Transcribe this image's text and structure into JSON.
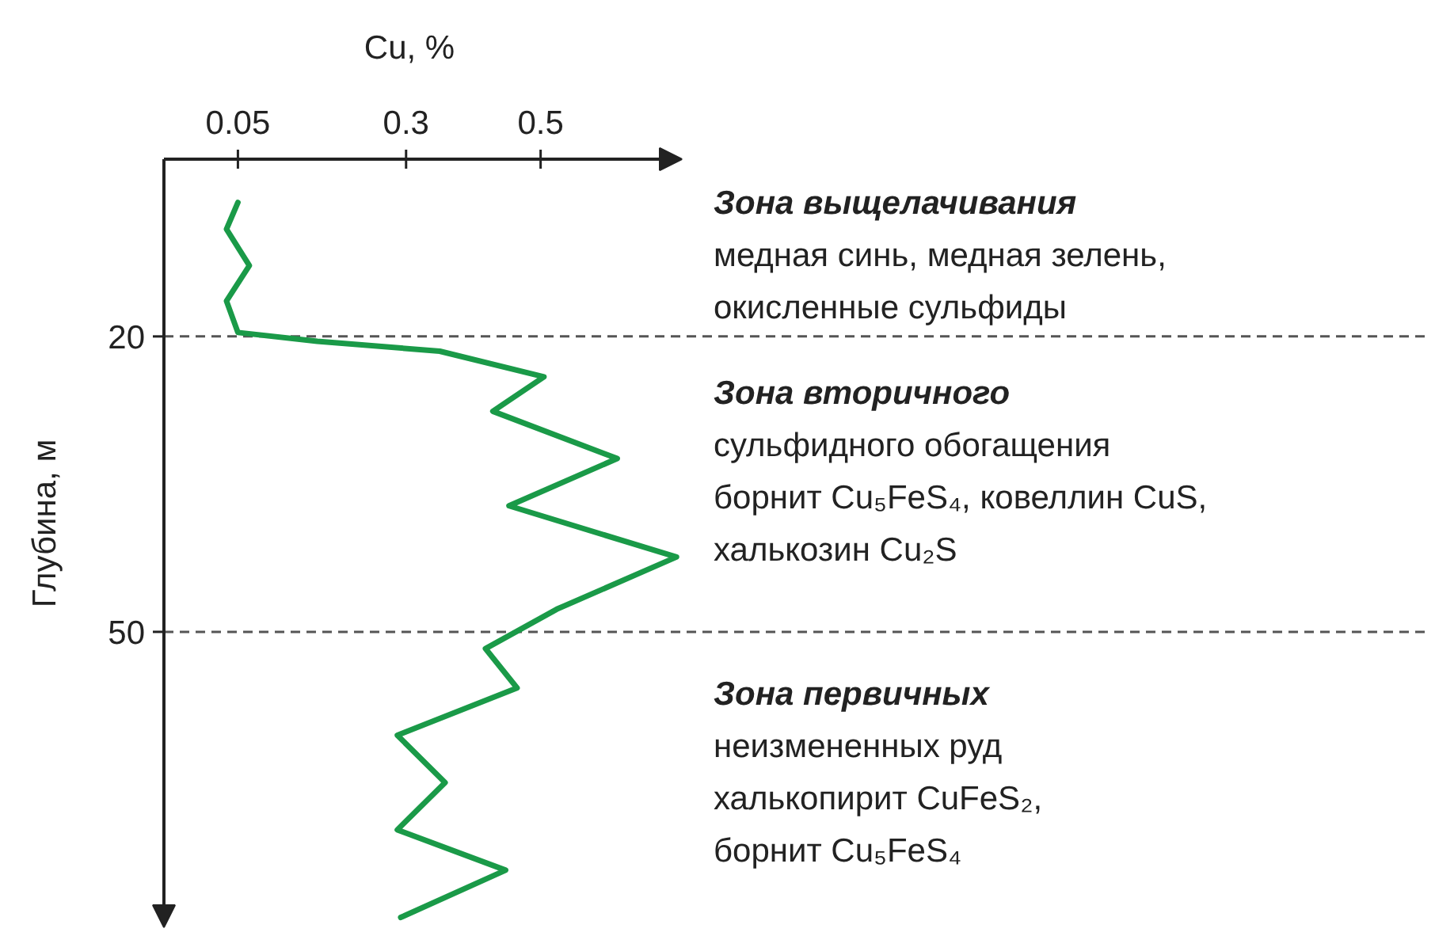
{
  "chart_data": {
    "type": "line",
    "xlabel": "Cu, %",
    "ylabel": "Глубина, м",
    "xlim": [
      -0.06,
      0.71
    ],
    "ylim": [
      80,
      2
    ],
    "xticks": [
      0.05,
      0.3,
      0.5
    ],
    "yticks": [
      20,
      50
    ],
    "grid": false,
    "series": [
      {
        "color": "#1a9a48",
        "x": [
          0.05,
          0.033,
          0.067,
          0.033,
          0.05,
          0.168,
          0.35,
          0.505,
          0.429,
          0.614,
          0.453,
          0.702,
          0.524,
          0.418,
          0.465,
          0.287,
          0.358,
          0.287,
          0.448,
          0.292
        ],
        "values": [
          6.4,
          9.1,
          12.8,
          16.4,
          19.6,
          20.5,
          21.5,
          24.1,
          27.6,
          32.4,
          37.2,
          42.4,
          47.7,
          51.7,
          55.7,
          60.5,
          65.3,
          70.1,
          74.2,
          79.0
        ]
      }
    ],
    "ref_lines": [
      {
        "axis": "y",
        "value": 20,
        "line_style": "dashed",
        "color": "#555555"
      },
      {
        "axis": "y",
        "value": 50,
        "line_style": "dashed",
        "color": "#555555"
      }
    ],
    "annotations": [
      "Зона выщелачивания\nмедная синь, медная зелень,\nокисленные сульфиды",
      "Зона вторичного\nсульфидного обогащения\nборнит Cu₅FeS₄, ковеллин CuS,\nхалькозин Cu₂S",
      "Зона первичных\nнеизмененных руд\nхалькопирит CuFeS₂,\nборнит Cu₅FeS₄"
    ]
  }
}
